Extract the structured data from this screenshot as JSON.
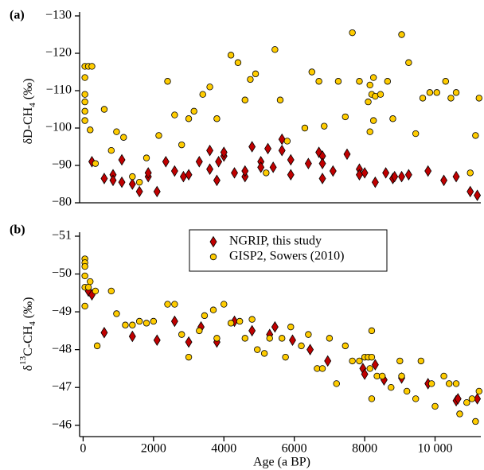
{
  "chart_data": [
    {
      "type": "scatter",
      "panel_label": "(a)",
      "ylabel": [
        "δD-CH",
        "4",
        " (‰)"
      ],
      "xlim": [
        -100,
        11300
      ],
      "ylim": [
        -80,
        -130
      ],
      "yticks": [
        {
          "value": -130,
          "label": "−130"
        },
        {
          "value": -120,
          "label": "−120"
        },
        {
          "value": -110,
          "label": "−110"
        },
        {
          "value": -100,
          "label": "−100"
        },
        {
          "value": -90,
          "label": "−90"
        },
        {
          "value": -80,
          "label": "−80"
        }
      ],
      "series": [
        {
          "marker": "diamond",
          "color": "#c00000",
          "x": [
            250,
            600,
            850,
            850,
            1100,
            1100,
            1400,
            1600,
            1850,
            1850,
            2100,
            2350,
            2600,
            2850,
            3000,
            3300,
            3600,
            3600,
            3800,
            3850,
            4000,
            4000,
            4300,
            4600,
            4600,
            4800,
            5050,
            5050,
            5250,
            5400,
            5650,
            5650,
            5900,
            5900,
            6400,
            6700,
            6800,
            6800,
            6800,
            7100,
            7500,
            7850,
            7850,
            8000,
            8300,
            8600,
            8800,
            8850,
            9050,
            9250,
            9800,
            10250,
            10600,
            11000,
            11200
          ],
          "values": [
            -91,
            -86.5,
            -87.5,
            -86,
            -85.5,
            -91.5,
            -85,
            -83,
            -87,
            -88,
            -83,
            -91,
            -88.5,
            -87,
            -87.5,
            -91,
            -89,
            -94,
            -86,
            -91,
            -92.5,
            -93.5,
            -88,
            -87,
            -88.5,
            -95,
            -91,
            -89.5,
            -94.5,
            -89.5,
            -94,
            -97,
            -91.5,
            -87.5,
            -90.5,
            -93.5,
            -86.5,
            -92.5,
            -90.5,
            -88.5,
            -93,
            -89,
            -87.5,
            -88,
            -85.5,
            -88,
            -86.5,
            -87,
            -87,
            -87.5,
            -88.5,
            -86,
            -87,
            -83,
            -82
          ]
        },
        {
          "marker": "circle",
          "color": "#ffcc00",
          "x": [
            50,
            50,
            50,
            50,
            50,
            50,
            150,
            250,
            200,
            350,
            600,
            800,
            950,
            1150,
            1400,
            1600,
            1800,
            2150,
            2400,
            2600,
            2800,
            3000,
            3150,
            3400,
            3600,
            3800,
            4200,
            4400,
            4600,
            4750,
            4900,
            5200,
            5450,
            5600,
            5800,
            6300,
            6500,
            6700,
            6850,
            7250,
            7450,
            7650,
            7850,
            8100,
            8150,
            8150,
            8200,
            8250,
            8250,
            8300,
            8450,
            8650,
            8800,
            9050,
            9250,
            9450,
            9650,
            9850,
            10050,
            10300,
            10450,
            10600,
            11000,
            11150,
            11250
          ],
          "values": [
            -116.5,
            -113.5,
            -109,
            -107,
            -104.5,
            -102,
            -116.5,
            -116.5,
            -99.5,
            -90.5,
            -105,
            -94,
            -99,
            -97.5,
            -87,
            -85.5,
            -92,
            -98,
            -112.5,
            -103.5,
            -95.5,
            -102.5,
            -104.5,
            -109,
            -111,
            -102.5,
            -119.5,
            -117.5,
            -107.5,
            -113,
            -114.5,
            -88,
            -121,
            -107.5,
            -96.5,
            -100,
            -115,
            -112.5,
            -100.5,
            -112.5,
            -103,
            -125.5,
            -112.5,
            -107,
            -111.5,
            -99,
            -109,
            -113.5,
            -102,
            -108.5,
            -109,
            -112.5,
            -102.5,
            -125,
            -117.5,
            -98.5,
            -108,
            -109.5,
            -109.5,
            -112.5,
            -108,
            -109.5,
            -88,
            -98,
            -108
          ]
        }
      ]
    },
    {
      "type": "scatter",
      "panel_label": "(b)",
      "ylabel": [
        "δ",
        "13",
        "C-CH",
        "4",
        " (‰)"
      ],
      "xlabel": "Age (a BP)",
      "xlim": [
        -100,
        11300
      ],
      "ylim": [
        -45.7,
        -51
      ],
      "legend": "top-center",
      "xticks": [
        0,
        2000,
        4000,
        6000,
        8000,
        {
          "value": 10000,
          "label": "10 000"
        }
      ],
      "yticks": [
        {
          "value": -51,
          "label": "−51"
        },
        {
          "value": -50,
          "label": "−50"
        },
        {
          "value": -49,
          "label": "−49"
        },
        {
          "value": -48,
          "label": "−48"
        },
        {
          "value": -47,
          "label": "−47"
        },
        {
          "value": -46,
          "label": "−46"
        }
      ],
      "series": [
        {
          "name": "NGRIP, this study",
          "marker": "diamond",
          "color": "#c00000",
          "x": [
            150,
            250,
            600,
            1400,
            2100,
            2600,
            3000,
            3350,
            3800,
            4300,
            4800,
            5300,
            5450,
            5950,
            6450,
            6950,
            7950,
            8000,
            8300,
            8550,
            9050,
            9800,
            10600,
            10650,
            11200
          ],
          "values": [
            -49.55,
            -49.45,
            -48.45,
            -48.35,
            -48.25,
            -48.75,
            -48.2,
            -48.6,
            -48.2,
            -48.75,
            -48.5,
            -48.4,
            -48.6,
            -48.25,
            -48,
            -47.7,
            -47.5,
            -47.35,
            -47.6,
            -47.2,
            -47.25,
            -47.1,
            -46.65,
            -46.7,
            -46.7
          ]
        },
        {
          "name": "GISP2, Sowers (2010)",
          "marker": "circle",
          "color": "#ffcc00",
          "x": [
            50,
            50,
            50,
            50,
            50,
            50,
            150,
            200,
            350,
            400,
            800,
            950,
            1200,
            1400,
            1600,
            1800,
            2000,
            2400,
            2600,
            2800,
            3000,
            3300,
            3450,
            3700,
            3800,
            4000,
            4200,
            4450,
            4600,
            4800,
            4950,
            5150,
            5300,
            5650,
            5750,
            5900,
            6200,
            6400,
            6650,
            6800,
            7000,
            7200,
            7450,
            7650,
            7850,
            8000,
            8100,
            8150,
            8200,
            8200,
            8200,
            8350,
            8500,
            8750,
            9000,
            9050,
            9200,
            9450,
            9600,
            9900,
            10000,
            10250,
            10400,
            10600,
            10700,
            10900,
            11050,
            11150,
            11250
          ],
          "values": [
            -50.4,
            -50.3,
            -50.2,
            -49.95,
            -49.65,
            -49.15,
            -49.65,
            -49.8,
            -49.55,
            -48.1,
            -49.55,
            -48.95,
            -48.65,
            -48.65,
            -48.75,
            -48.7,
            -48.75,
            -49.2,
            -49.2,
            -48.4,
            -47.8,
            -48.5,
            -48.9,
            -49.05,
            -48.3,
            -49.2,
            -48.7,
            -48.75,
            -48.3,
            -48.8,
            -48,
            -47.9,
            -48.3,
            -48.3,
            -47.8,
            -48.6,
            -48.1,
            -48.4,
            -47.5,
            -47.5,
            -48.3,
            -47.1,
            -48.1,
            -47.7,
            -47.7,
            -47.8,
            -47.8,
            -47.5,
            -47.8,
            -46.7,
            -48.5,
            -47.3,
            -47.3,
            -47,
            -47.7,
            -47.3,
            -46.9,
            -46.7,
            -47.7,
            -47.1,
            -46.5,
            -47.3,
            -47.1,
            -47.1,
            -46.3,
            -46.6,
            -46.7,
            -46.1,
            -46.9
          ]
        }
      ]
    }
  ]
}
